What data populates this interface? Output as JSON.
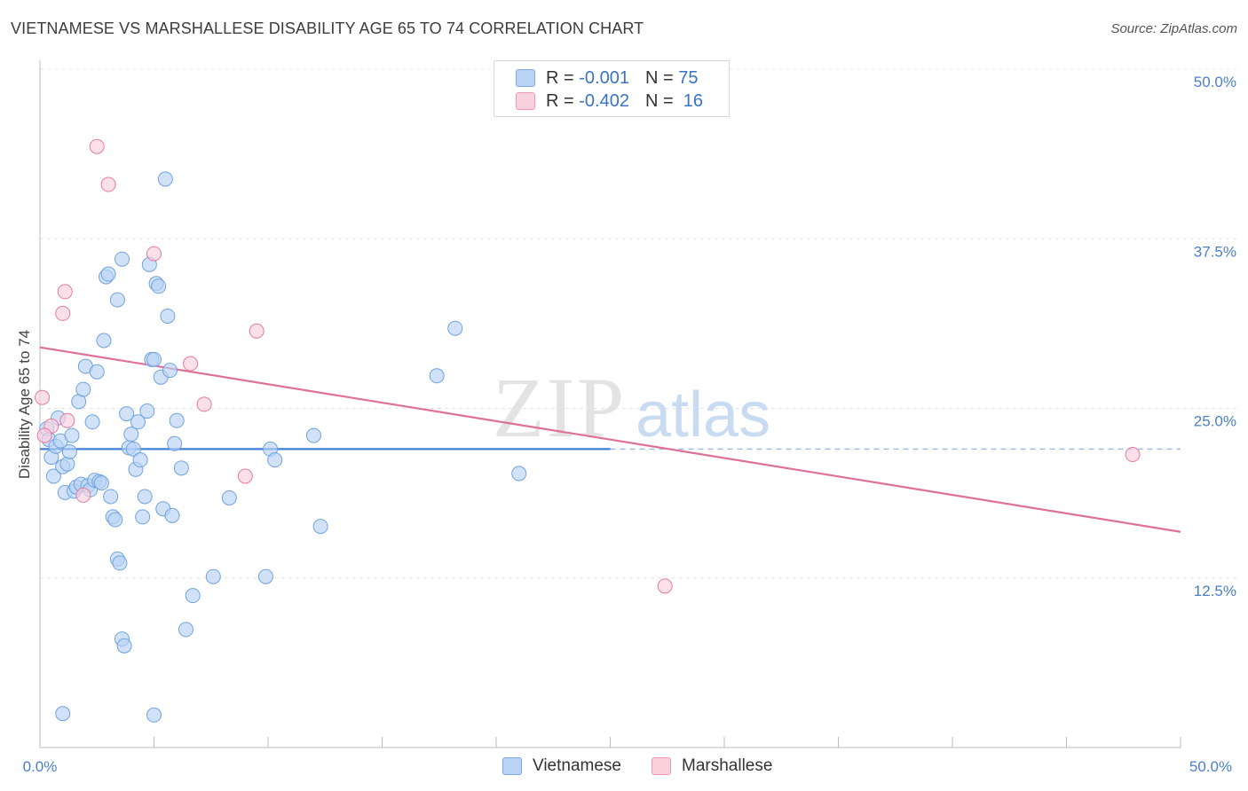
{
  "title": "VIETNAMESE VS MARSHALLESE DISABILITY AGE 65 TO 74 CORRELATION CHART",
  "source": "Source: ZipAtlas.com",
  "watermark": {
    "bold": "ZIP",
    "light": "atlas"
  },
  "legend": {
    "rows": [
      {
        "r_label": "R =",
        "r_value": "-0.001",
        "n_label": "N =",
        "n_value": "75",
        "color": "#b9d3f5"
      },
      {
        "r_label": "R =",
        "r_value": "-0.402",
        "n_label": "N =",
        "n_value": "16",
        "color": "#fbd0dd"
      }
    ]
  },
  "bottom_legend": {
    "series1": "Vietnamese",
    "series2": "Marshallese"
  },
  "chart_data": {
    "type": "scatter",
    "ylabel": "Disability Age 65 to 74",
    "xlabel": "",
    "xlim": [
      0,
      50
    ],
    "ylim": [
      0,
      50
    ],
    "x_tick_labels": [
      "0.0%",
      "50.0%"
    ],
    "y_tick_labels": [
      "12.5%",
      "25.0%",
      "37.5%",
      "50.0%"
    ],
    "y_ticks": [
      12.5,
      25.0,
      37.5,
      50.0
    ],
    "grid": true,
    "legend_position": "top-center",
    "series": [
      {
        "name": "Vietnamese",
        "color": "#6fa3e0",
        "fill": "#b9d3f5",
        "points": [
          [
            0.3,
            23.5
          ],
          [
            0.4,
            22.7
          ],
          [
            0.5,
            21.4
          ],
          [
            0.6,
            20.0
          ],
          [
            0.7,
            22.2
          ],
          [
            0.8,
            24.3
          ],
          [
            0.9,
            22.6
          ],
          [
            1.0,
            20.7
          ],
          [
            1.1,
            18.8
          ],
          [
            1.2,
            20.9
          ],
          [
            1.3,
            21.8
          ],
          [
            1.4,
            23.0
          ],
          [
            1.5,
            18.9
          ],
          [
            1.6,
            19.2
          ],
          [
            1.7,
            25.5
          ],
          [
            1.8,
            19.4
          ],
          [
            1.9,
            26.4
          ],
          [
            2.0,
            28.1
          ],
          [
            2.1,
            19.3
          ],
          [
            2.2,
            19.0
          ],
          [
            2.3,
            24.0
          ],
          [
            2.4,
            19.7
          ],
          [
            2.5,
            27.7
          ],
          [
            2.6,
            19.6
          ],
          [
            2.7,
            19.5
          ],
          [
            2.8,
            30.0
          ],
          [
            2.9,
            34.7
          ],
          [
            3.0,
            34.9
          ],
          [
            3.1,
            18.5
          ],
          [
            3.2,
            17.0
          ],
          [
            3.3,
            16.8
          ],
          [
            3.4,
            13.9
          ],
          [
            3.5,
            13.6
          ],
          [
            3.6,
            8.0
          ],
          [
            3.7,
            7.5
          ],
          [
            3.8,
            24.6
          ],
          [
            3.9,
            22.1
          ],
          [
            4.0,
            23.1
          ],
          [
            4.1,
            22.0
          ],
          [
            4.2,
            20.5
          ],
          [
            4.3,
            24.0
          ],
          [
            4.4,
            21.2
          ],
          [
            4.5,
            17.0
          ],
          [
            4.6,
            18.5
          ],
          [
            4.7,
            24.8
          ],
          [
            4.8,
            35.6
          ],
          [
            4.9,
            28.6
          ],
          [
            5.0,
            28.6
          ],
          [
            5.1,
            34.2
          ],
          [
            5.2,
            34.0
          ],
          [
            5.3,
            27.3
          ],
          [
            5.4,
            17.6
          ],
          [
            5.5,
            41.9
          ],
          [
            5.6,
            31.8
          ],
          [
            5.7,
            27.8
          ],
          [
            5.8,
            17.1
          ],
          [
            5.9,
            22.4
          ],
          [
            6.0,
            24.1
          ],
          [
            6.2,
            20.6
          ],
          [
            6.4,
            8.7
          ],
          [
            6.7,
            11.2
          ],
          [
            7.6,
            12.6
          ],
          [
            8.3,
            18.4
          ],
          [
            9.9,
            12.6
          ],
          [
            10.1,
            22.0
          ],
          [
            10.3,
            21.2
          ],
          [
            12.0,
            23.0
          ],
          [
            12.3,
            16.3
          ],
          [
            17.4,
            27.4
          ],
          [
            18.2,
            30.9
          ],
          [
            21.0,
            20.2
          ],
          [
            3.6,
            36.0
          ],
          [
            3.4,
            33.0
          ],
          [
            1.0,
            2.5
          ],
          [
            5.0,
            2.4
          ]
        ],
        "trend": {
          "x": [
            0,
            25
          ],
          "y": [
            22.0,
            22.0
          ],
          "dashed_extension": [
            25,
            50
          ]
        }
      },
      {
        "name": "Marshallese",
        "color": "#e57aa0",
        "fill": "#fbd0dd",
        "points": [
          [
            0.1,
            25.8
          ],
          [
            0.5,
            23.7
          ],
          [
            1.0,
            32.0
          ],
          [
            1.1,
            33.6
          ],
          [
            1.2,
            24.1
          ],
          [
            1.9,
            18.6
          ],
          [
            2.5,
            44.3
          ],
          [
            3.0,
            41.5
          ],
          [
            5.0,
            36.4
          ],
          [
            6.6,
            28.3
          ],
          [
            7.2,
            25.3
          ],
          [
            9.0,
            20.0
          ],
          [
            9.5,
            30.7
          ],
          [
            27.4,
            11.9
          ],
          [
            47.9,
            21.6
          ],
          [
            0.2,
            23.0
          ]
        ],
        "trend": {
          "x": [
            0,
            50
          ],
          "y": [
            29.5,
            15.9
          ]
        }
      }
    ]
  }
}
